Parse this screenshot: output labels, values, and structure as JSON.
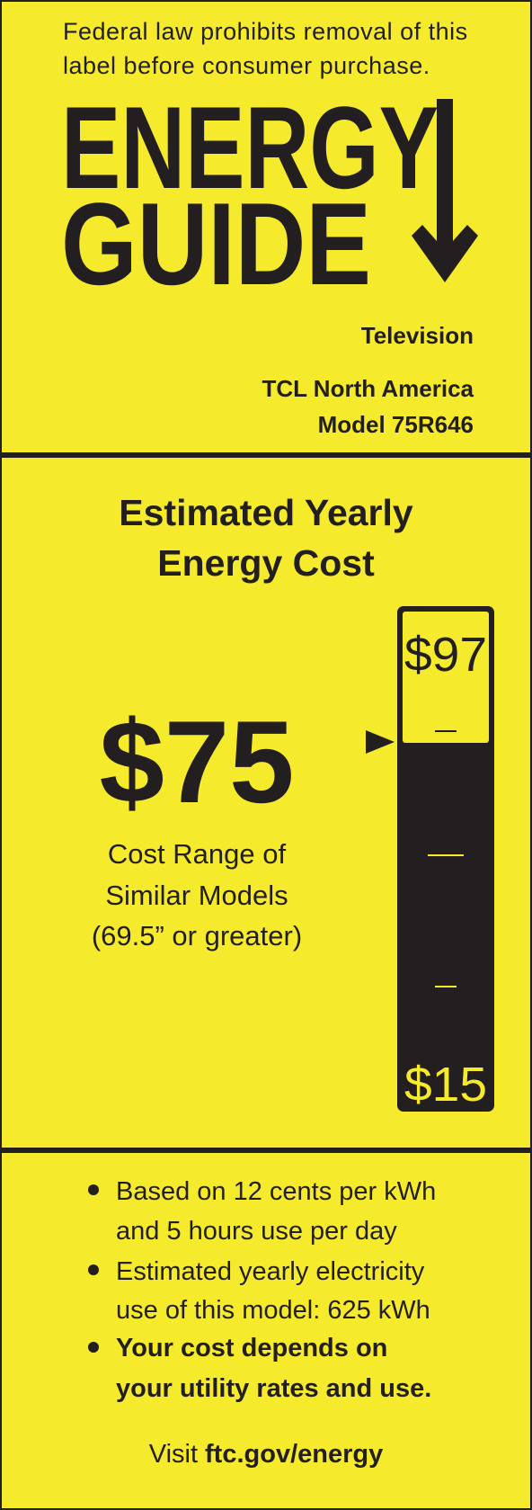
{
  "header": {
    "notice": [
      "Federal law prohibits removal of this",
      "label before consumer purchase."
    ],
    "logo": [
      "ENERGY",
      "GUIDE"
    ],
    "product_type": "Television",
    "manufacturer": "TCL North America",
    "model": "Model 75R646"
  },
  "cost": {
    "title": [
      "Estimated Yearly",
      "Energy Cost"
    ],
    "value": "$75",
    "range_caption": [
      "Cost Range of",
      "Similar Models",
      "(69.5” or greater)"
    ],
    "range_high": "$97",
    "range_low": "$15"
  },
  "notes": [
    [
      "Based on 12 cents per kWh",
      "and 5 hours use per day"
    ],
    [
      "Estimated yearly electricity",
      "use of this model: 625 kWh"
    ],
    [
      "Your cost depends on",
      "your utility rates and use."
    ]
  ],
  "footer": {
    "prefix": "Visit",
    "link": "ftc.gov/energy"
  }
}
